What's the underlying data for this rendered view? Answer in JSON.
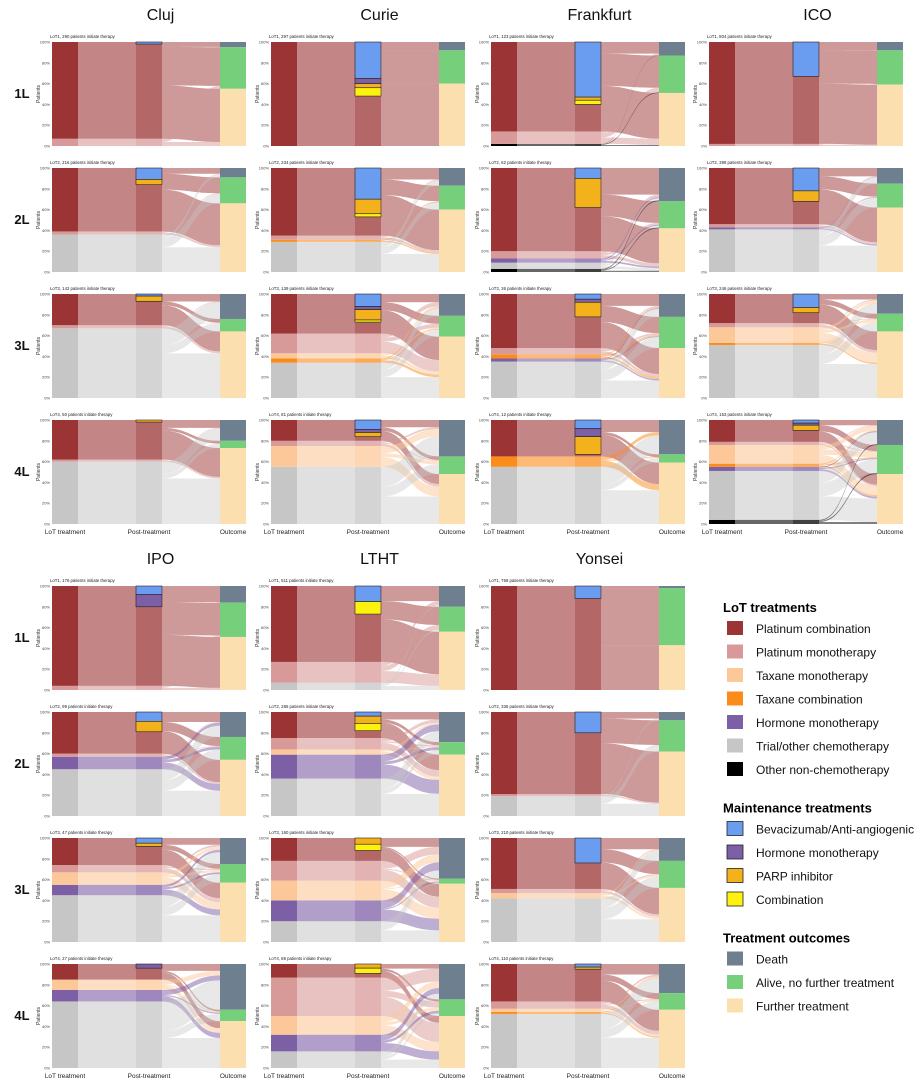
{
  "chart_data": {
    "type": "sankey",
    "columns": [
      {
        "name": "Cluj",
        "panels": [
          {
            "line": "1L",
            "caption": "LoT1, 290 patients initiate therapy",
            "lot": {
              "Platinum combination": 93,
              "Platinum monotherapy": 7
            },
            "maint": {
              "Bevacizumab/Anti-angiogenic": 2
            },
            "outcome": {
              "Death": 5,
              "Alive, no further treatment": 40,
              "Further treatment": 55
            }
          },
          {
            "line": "2L",
            "caption": "LoT2, 216 patients initiate therapy",
            "lot": {
              "Platinum combination": 61,
              "Platinum monotherapy": 3,
              "Trial/other chemotherapy": 36
            },
            "maint": {
              "Bevacizumab/Anti-angiogenic": 11,
              "PARP inhibitor": 5
            },
            "outcome": {
              "Death": 9,
              "Alive, no further treatment": 25,
              "Further treatment": 66
            }
          },
          {
            "line": "3L",
            "caption": "LoT3, 142 patients initiate therapy",
            "lot": {
              "Platinum combination": 30,
              "Platinum monotherapy": 3,
              "Trial/other chemotherapy": 67
            },
            "maint": {
              "Bevacizumab/Anti-angiogenic": 2,
              "PARP inhibitor": 5
            },
            "outcome": {
              "Death": 24,
              "Alive, no further treatment": 12,
              "Further treatment": 64
            }
          },
          {
            "line": "4L",
            "caption": "LoT4, 50 patients initiate therapy",
            "lot": {
              "Platinum combination": 38,
              "Platinum monotherapy": 2,
              "Trial/other chemotherapy": 60
            },
            "maint": {
              "PARP inhibitor": 2
            },
            "outcome": {
              "Death": 20,
              "Alive, no further treatment": 7,
              "Further treatment": 73
            }
          }
        ]
      },
      {
        "name": "Curie",
        "panels": [
          {
            "line": "1L",
            "caption": "LoT1, 297 patients initiate therapy",
            "lot": {
              "Platinum combination": 100
            },
            "maint": {
              "Bevacizumab/Anti-angiogenic": 35,
              "Hormone monotherapy": 5,
              "PARP inhibitor": 4,
              "Combination": 8
            },
            "outcome": {
              "Death": 8,
              "Alive, no further treatment": 32,
              "Further treatment": 60
            }
          },
          {
            "line": "2L",
            "caption": "LoT2, 234 patients initiate therapy",
            "lot": {
              "Platinum combination": 65,
              "Platinum monotherapy": 4,
              "Taxane combination": 2,
              "Trial/other chemotherapy": 29
            },
            "maint": {
              "Bevacizumab/Anti-angiogenic": 30,
              "PARP inhibitor": 14,
              "Combination": 3
            },
            "outcome": {
              "Death": 17,
              "Alive, no further treatment": 23,
              "Further treatment": 60
            }
          },
          {
            "line": "3L",
            "caption": "LoT3, 139 patients initiate therapy",
            "lot": {
              "Platinum combination": 38,
              "Platinum monotherapy": 19,
              "Taxane monotherapy": 5,
              "Taxane combination": 4,
              "Trial/other chemotherapy": 34
            },
            "maint": {
              "Bevacizumab/Anti-angiogenic": 12,
              "Hormone monotherapy": 3,
              "PARP inhibitor": 10,
              "Combination": 2
            },
            "outcome": {
              "Death": 21,
              "Alive, no further treatment": 20,
              "Further treatment": 59
            }
          },
          {
            "line": "4L",
            "caption": "LoT4, 81 patients initiate therapy",
            "lot": {
              "Platinum combination": 20,
              "Platinum monotherapy": 5,
              "Taxane monotherapy": 20,
              "Trial/other chemotherapy": 55
            },
            "maint": {
              "Bevacizumab/Anti-angiogenic": 9,
              "Hormone monotherapy": 3,
              "PARP inhibitor": 4
            },
            "outcome": {
              "Death": 35,
              "Alive, no further treatment": 17,
              "Further treatment": 48
            }
          }
        ]
      },
      {
        "name": "Frankfurt",
        "panels": [
          {
            "line": "1L",
            "caption": "LoT1, 123 patients initiate therapy",
            "lot": {
              "Platinum combination": 86,
              "Platinum monotherapy": 12,
              "Other non-chemotherapy": 2
            },
            "maint": {
              "Bevacizumab/Anti-angiogenic": 53,
              "PARP inhibitor": 3,
              "Combination": 4
            },
            "outcome": {
              "Death": 13,
              "Alive, no further treatment": 36,
              "Further treatment": 51
            }
          },
          {
            "line": "2L",
            "caption": "LoT2, 62 patients initiate therapy",
            "lot": {
              "Platinum combination": 80,
              "Platinum monotherapy": 7,
              "Hormone monotherapy": 4,
              "Trial/other chemotherapy": 6,
              "Other non-chemotherapy": 3
            },
            "maint": {
              "Bevacizumab/Anti-angiogenic": 10,
              "PARP inhibitor": 28
            },
            "outcome": {
              "Death": 32,
              "Alive, no further treatment": 26,
              "Further treatment": 42
            }
          },
          {
            "line": "3L",
            "caption": "LoT3, 36 patients initiate therapy",
            "lot": {
              "Platinum combination": 52,
              "Platinum monotherapy": 6,
              "Taxane combination": 4,
              "Hormone monotherapy": 3,
              "Trial/other chemotherapy": 35
            },
            "maint": {
              "Bevacizumab/Anti-angiogenic": 5,
              "Hormone monotherapy": 3,
              "PARP inhibitor": 14
            },
            "outcome": {
              "Death": 22,
              "Alive, no further treatment": 30,
              "Further treatment": 48
            }
          },
          {
            "line": "4L",
            "caption": "LoT4, 12 patients initiate therapy",
            "lot": {
              "Platinum combination": 35,
              "Taxane combination": 10,
              "Trial/other chemotherapy": 55
            },
            "maint": {
              "Bevacizumab/Anti-angiogenic": 8,
              "Hormone monotherapy": 8,
              "PARP inhibitor": 17
            },
            "outcome": {
              "Death": 33,
              "Alive, no further treatment": 8,
              "Further treatment": 59
            }
          }
        ]
      },
      {
        "name": "ICO",
        "panels": [
          {
            "line": "1L",
            "caption": "LoT1, 804 patients initiate therapy",
            "lot": {
              "Platinum combination": 98,
              "Platinum monotherapy": 2
            },
            "maint": {
              "Bevacizumab/Anti-angiogenic": 33
            },
            "outcome": {
              "Death": 8,
              "Alive, no further treatment": 33,
              "Further treatment": 59
            }
          },
          {
            "line": "2L",
            "caption": "LoT2, 398 patients initiate therapy",
            "lot": {
              "Platinum combination": 54,
              "Platinum monotherapy": 3,
              "Hormone monotherapy": 2,
              "Trial/other chemotherapy": 41
            },
            "maint": {
              "Bevacizumab/Anti-angiogenic": 22,
              "PARP inhibitor": 10
            },
            "outcome": {
              "Death": 15,
              "Alive, no further treatment": 23,
              "Further treatment": 62
            }
          },
          {
            "line": "3L",
            "caption": "LoT3, 246 patients initiate therapy",
            "lot": {
              "Platinum combination": 28,
              "Platinum monotherapy": 4,
              "Taxane monotherapy": 15,
              "Taxane combination": 2,
              "Trial/other chemotherapy": 51
            },
            "maint": {
              "Bevacizumab/Anti-angiogenic": 13,
              "PARP inhibitor": 5
            },
            "outcome": {
              "Death": 19,
              "Alive, no further treatment": 17,
              "Further treatment": 64
            }
          },
          {
            "line": "4L",
            "caption": "LoT4, 153 patients initiate therapy",
            "lot": {
              "Platinum combination": 21,
              "Platinum monotherapy": 3,
              "Taxane monotherapy": 18,
              "Taxane combination": 3,
              "Hormone monotherapy": 4,
              "Trial/other chemotherapy": 47,
              "Other non-chemotherapy": 4
            },
            "maint": {
              "Bevacizumab/Anti-angiogenic": 3,
              "Hormone monotherapy": 2,
              "PARP inhibitor": 5
            },
            "outcome": {
              "Death": 24,
              "Alive, no further treatment": 28,
              "Further treatment": 48
            }
          }
        ]
      },
      {
        "name": "IPO",
        "panels": [
          {
            "line": "1L",
            "caption": "LoT1, 176 patients initiate therapy",
            "lot": {
              "Platinum combination": 96,
              "Platinum monotherapy": 4
            },
            "maint": {
              "Bevacizumab/Anti-angiogenic": 8,
              "Hormone monotherapy": 12
            },
            "outcome": {
              "Death": 16,
              "Alive, no further treatment": 33,
              "Further treatment": 51
            }
          },
          {
            "line": "2L",
            "caption": "LoT2, 99 patients initiate therapy",
            "lot": {
              "Platinum combination": 40,
              "Platinum monotherapy": 3,
              "Hormone monotherapy": 12,
              "Trial/other chemotherapy": 45
            },
            "maint": {
              "Bevacizumab/Anti-angiogenic": 9,
              "PARP inhibitor": 10
            },
            "outcome": {
              "Death": 24,
              "Alive, no further treatment": 22,
              "Further treatment": 54
            }
          },
          {
            "line": "3L",
            "caption": "LoT3, 47 patients initiate therapy",
            "lot": {
              "Platinum combination": 26,
              "Platinum monotherapy": 7,
              "Taxane monotherapy": 12,
              "Hormone monotherapy": 10,
              "Trial/other chemotherapy": 45
            },
            "maint": {
              "Bevacizumab/Anti-angiogenic": 5,
              "PARP inhibitor": 3
            },
            "outcome": {
              "Death": 25,
              "Alive, no further treatment": 18,
              "Further treatment": 57
            }
          },
          {
            "line": "4L",
            "caption": "LoT4, 27 patients initiate therapy",
            "lot": {
              "Platinum combination": 15,
              "Taxane monotherapy": 10,
              "Hormone monotherapy": 11,
              "Trial/other chemotherapy": 64
            },
            "maint": {
              "Hormone monotherapy": 4
            },
            "outcome": {
              "Death": 44,
              "Alive, no further treatment": 11,
              "Further treatment": 45
            }
          }
        ]
      },
      {
        "name": "LTHT",
        "panels": [
          {
            "line": "1L",
            "caption": "LoT1, 511 patients initiate therapy",
            "lot": {
              "Platinum combination": 73,
              "Platinum monotherapy": 20,
              "Trial/other chemotherapy": 7
            },
            "maint": {
              "Bevacizumab/Anti-angiogenic": 15,
              "Combination": 12
            },
            "outcome": {
              "Death": 20,
              "Alive, no further treatment": 24,
              "Further treatment": 56
            }
          },
          {
            "line": "2L",
            "caption": "LoT2, 285 patients initiate therapy",
            "lot": {
              "Platinum combination": 25,
              "Platinum monotherapy": 11,
              "Taxane monotherapy": 5,
              "Hormone monotherapy": 23,
              "Trial/other chemotherapy": 36
            },
            "maint": {
              "Bevacizumab/Anti-angiogenic": 4,
              "PARP inhibitor": 7,
              "Combination": 7
            },
            "outcome": {
              "Death": 29,
              "Alive, no further treatment": 12,
              "Further treatment": 59
            }
          },
          {
            "line": "3L",
            "caption": "LoT3, 160 patients initiate therapy",
            "lot": {
              "Platinum combination": 22,
              "Platinum monotherapy": 19,
              "Taxane monotherapy": 19,
              "Hormone monotherapy": 20,
              "Trial/other chemotherapy": 20
            },
            "maint": {
              "PARP inhibitor": 6,
              "Combination": 6
            },
            "outcome": {
              "Death": 39,
              "Alive, no further treatment": 5,
              "Further treatment": 56
            }
          },
          {
            "line": "4L",
            "caption": "LoT4, 88 patients initiate therapy",
            "lot": {
              "Platinum combination": 13,
              "Platinum monotherapy": 37,
              "Taxane monotherapy": 18,
              "Hormone monotherapy": 16,
              "Trial/other chemotherapy": 16
            },
            "maint": {
              "PARP inhibitor": 4,
              "Combination": 5
            },
            "outcome": {
              "Death": 34,
              "Alive, no further treatment": 16,
              "Further treatment": 50
            }
          }
        ]
      },
      {
        "name": "Yonsei",
        "panels": [
          {
            "line": "1L",
            "caption": "LoT1, 768 patients initiate therapy",
            "lot": {
              "Platinum combination": 100
            },
            "maint": {
              "Bevacizumab/Anti-angiogenic": 12
            },
            "outcome": {
              "Death": 2,
              "Alive, no further treatment": 55,
              "Further treatment": 43
            }
          },
          {
            "line": "2L",
            "caption": "LoT2, 336 patients initiate therapy",
            "lot": {
              "Platinum combination": 79,
              "Platinum monotherapy": 2,
              "Trial/other chemotherapy": 19
            },
            "maint": {
              "Bevacizumab/Anti-angiogenic": 20
            },
            "outcome": {
              "Death": 8,
              "Alive, no further treatment": 30,
              "Further treatment": 62
            }
          },
          {
            "line": "3L",
            "caption": "LoT3, 210 patients initiate therapy",
            "lot": {
              "Platinum combination": 49,
              "Platinum monotherapy": 4,
              "Taxane monotherapy": 5,
              "Trial/other chemotherapy": 42
            },
            "maint": {
              "Bevacizumab/Anti-angiogenic": 24
            },
            "outcome": {
              "Death": 22,
              "Alive, no further treatment": 26,
              "Further treatment": 52
            }
          },
          {
            "line": "4L",
            "caption": "LoT4, 110 patients initiate therapy",
            "lot": {
              "Platinum combination": 36,
              "Platinum monotherapy": 7,
              "Taxane monotherapy": 3,
              "Taxane combination": 2,
              "Trial/other chemotherapy": 52
            },
            "maint": {
              "Bevacizumab/Anti-angiogenic": 3,
              "PARP inhibitor": 2
            },
            "outcome": {
              "Death": 28,
              "Alive, no further treatment": 16,
              "Further treatment": 56
            }
          }
        ]
      }
    ],
    "row_labels": [
      "1L",
      "2L",
      "3L",
      "4L"
    ],
    "y_axis_label": "Patients",
    "y_ticks": [
      "0%",
      "20%",
      "40%",
      "60%",
      "80%",
      "100%"
    ],
    "x_labels": [
      "LoT treatment",
      "Post-treatment",
      "Outcome"
    ],
    "legend_placement": "bottom-right"
  },
  "legend": {
    "groups": [
      {
        "title": "LoT treatments",
        "items": [
          {
            "label": "Platinum combination",
            "color": "#9b3434",
            "border": false
          },
          {
            "label": "Platinum monotherapy",
            "color": "#d89a98",
            "border": false
          },
          {
            "label": "Taxane monotherapy",
            "color": "#fcc89a",
            "border": false
          },
          {
            "label": "Taxane combination",
            "color": "#fb8c1a",
            "border": false
          },
          {
            "label": "Hormone monotherapy",
            "color": "#7d5fa6",
            "border": false
          },
          {
            "label": "Trial/other chemotherapy",
            "color": "#c6c6c6",
            "border": false
          },
          {
            "label": "Other non-chemotherapy",
            "color": "#000000",
            "border": false
          }
        ]
      },
      {
        "title": "Maintenance treatments",
        "items": [
          {
            "label": "Bevacizumab/Anti-angiogenic",
            "color": "#6a9cf0",
            "border": true
          },
          {
            "label": "Hormone monotherapy",
            "color": "#7d5fa6",
            "border": true
          },
          {
            "label": "PARP inhibitor",
            "color": "#f3b21c",
            "border": true
          },
          {
            "label": "Combination",
            "color": "#fdf20d",
            "border": true
          }
        ]
      },
      {
        "title": "Treatment outcomes",
        "items": [
          {
            "label": "Death",
            "color": "#6e7f8f",
            "border": false
          },
          {
            "label": "Alive, no further treatment",
            "color": "#76cf7a",
            "border": false
          },
          {
            "label": "Further treatment",
            "color": "#fbdfae",
            "border": false
          }
        ]
      }
    ]
  },
  "colors": {
    "Platinum combination": "#9b3434",
    "Platinum monotherapy": "#d89a98",
    "Taxane monotherapy": "#fcc89a",
    "Taxane combination": "#fb8c1a",
    "Hormone monotherapy": "#7d5fa6",
    "Trial/other chemotherapy": "#c6c6c6",
    "Other non-chemotherapy": "#000000",
    "Bevacizumab/Anti-angiogenic": "#6a9cf0",
    "PARP inhibitor": "#f3b21c",
    "Combination": "#fdf20d",
    "Death": "#6e7f8f",
    "Alive, no further treatment": "#76cf7a",
    "Further treatment": "#fbdfae",
    "flow_light": "#e0e0e0"
  }
}
